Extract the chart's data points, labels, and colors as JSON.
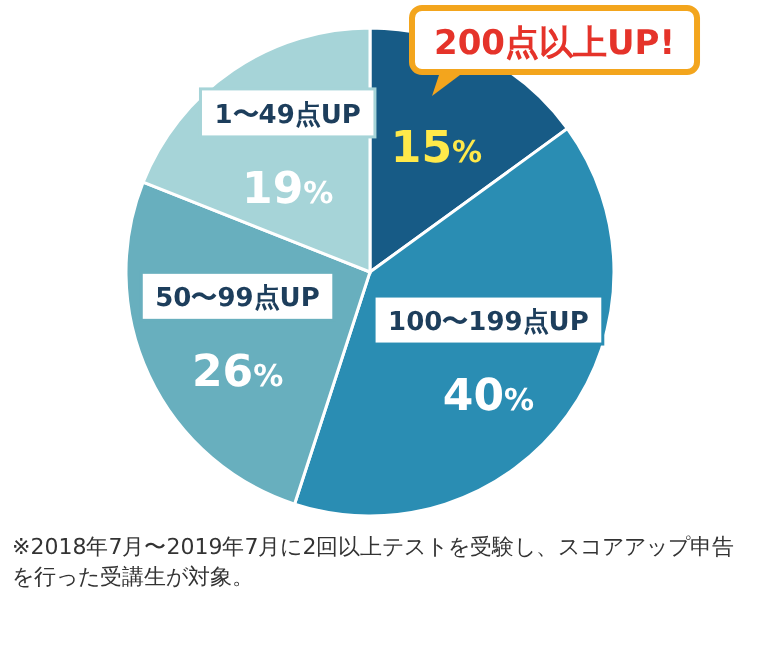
{
  "chart_data": {
    "type": "pie",
    "categories": [
      "200点以上UP!",
      "100〜199点UP",
      "50〜99点UP",
      "1〜49点UP"
    ],
    "values": [
      15,
      40,
      26,
      19
    ],
    "value_labels": [
      "15%",
      "40%",
      "26%",
      "19%"
    ],
    "colors": [
      "#175b86",
      "#2a8db3",
      "#68afbe",
      "#a6d4d8"
    ],
    "annotations": [
      "※2018年7月〜2019年7月に2回以上テストを受験し、スコアアップ申告を行った受講生が対象。"
    ]
  }
}
